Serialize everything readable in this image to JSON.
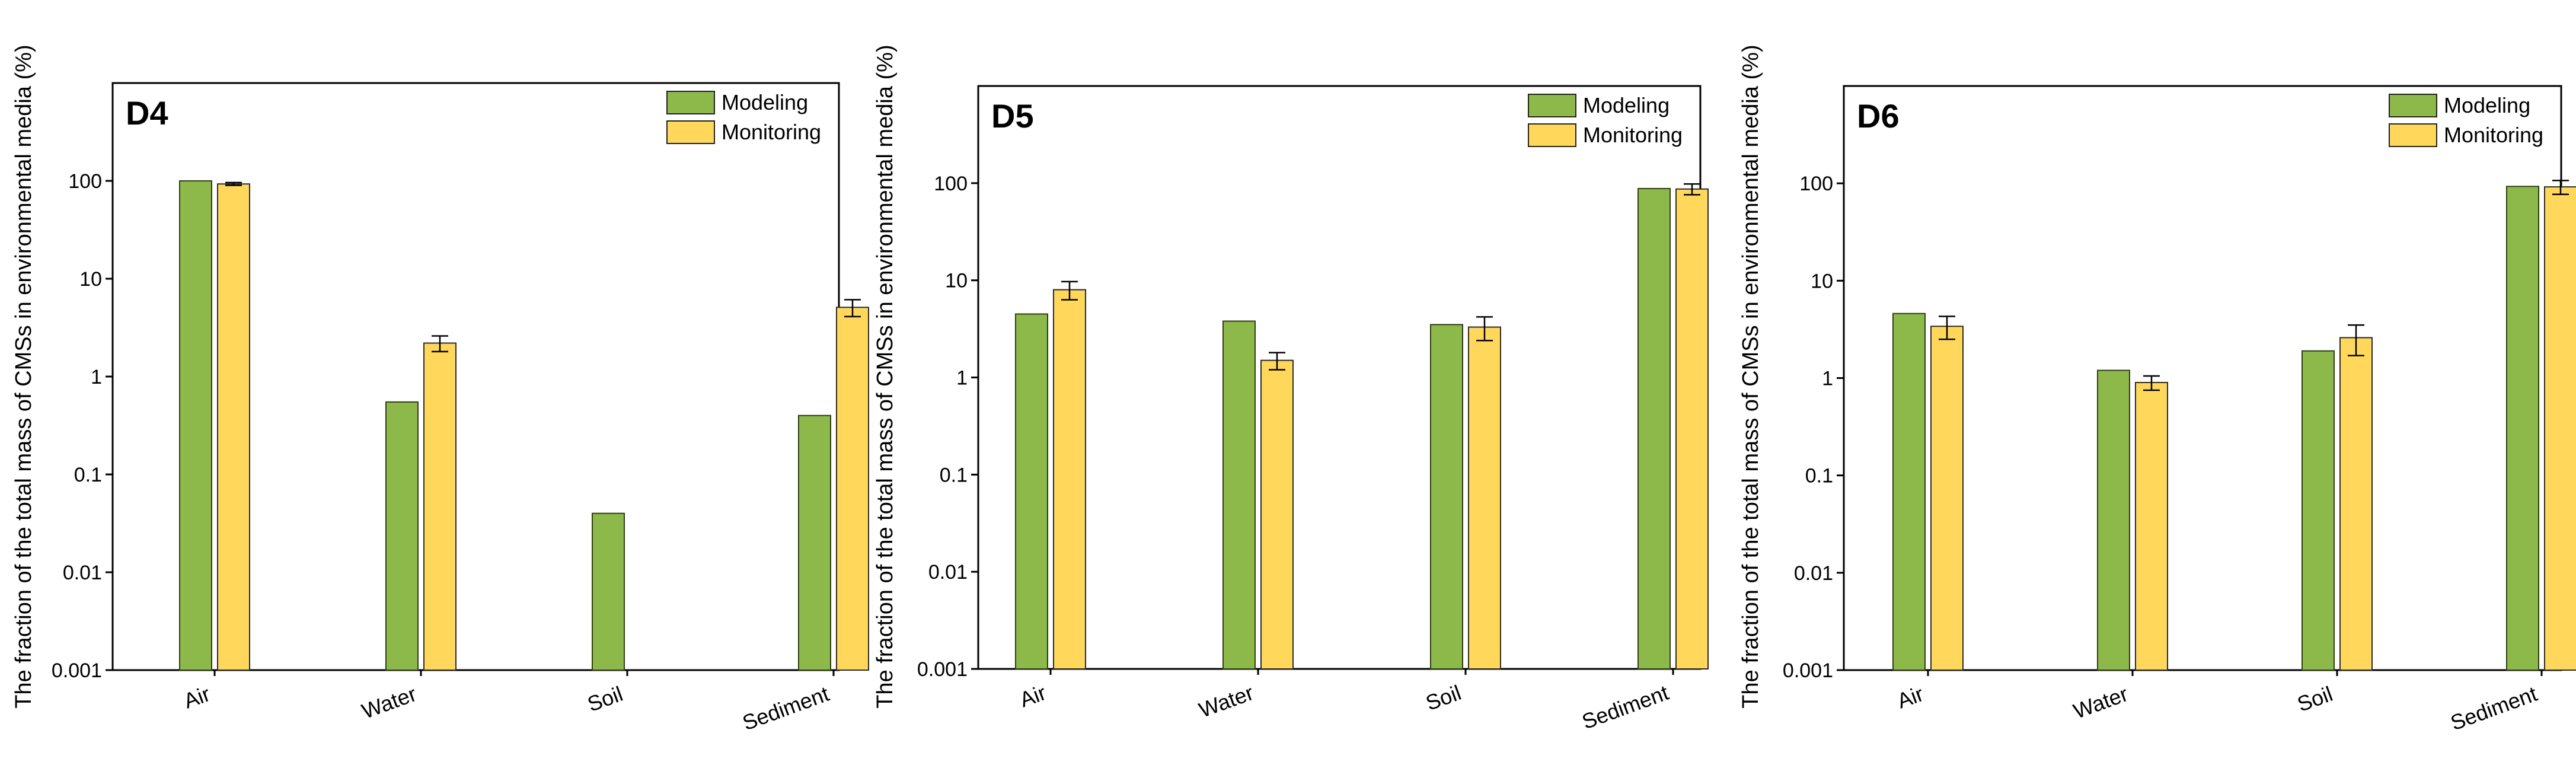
{
  "colors": {
    "modeling": "#8db84a",
    "monitoring": "#ffd75a",
    "axis": "#000000"
  },
  "chart_data": [
    {
      "type": "bar",
      "title": "D4",
      "ylabel": "The fraction of the total mass of CMSs in environmental media (%)",
      "yscale": "log",
      "ylim": [
        0.001,
        1000
      ],
      "yticks": [
        0.001,
        0.01,
        0.1,
        1,
        10,
        100
      ],
      "ytick_labels": [
        "0.001",
        "0.01",
        "0.1",
        "1",
        "10",
        "100"
      ],
      "categories": [
        "Air",
        "Water",
        "Soil",
        "Sediment"
      ],
      "series": [
        {
          "name": "Modeling",
          "values": [
            100,
            0.55,
            0.04,
            0.4
          ],
          "errors": [
            null,
            null,
            null,
            null
          ]
        },
        {
          "name": "Monitoring",
          "values": [
            93,
            2.2,
            null,
            5.1
          ],
          "errors": [
            3,
            0.4,
            null,
            1.0
          ]
        }
      ],
      "legend": [
        "Modeling",
        "Monitoring"
      ],
      "legend_position": "top-right"
    },
    {
      "type": "bar",
      "title": "D5",
      "ylabel": "The fraction of the total mass of CMSs in environmental media (%)",
      "yscale": "log",
      "ylim": [
        0.001,
        1000
      ],
      "yticks": [
        0.001,
        0.01,
        0.1,
        1,
        10,
        100
      ],
      "ytick_labels": [
        "0.001",
        "0.01",
        "0.1",
        "1",
        "10",
        "100"
      ],
      "categories": [
        "Air",
        "Water",
        "Soil",
        "Sediment"
      ],
      "series": [
        {
          "name": "Modeling",
          "values": [
            4.5,
            3.8,
            3.5,
            88
          ],
          "errors": [
            null,
            null,
            null,
            null
          ]
        },
        {
          "name": "Monitoring",
          "values": [
            8.0,
            1.5,
            3.3,
            87
          ],
          "errors": [
            1.7,
            0.3,
            0.9,
            11
          ]
        }
      ],
      "legend": [
        "Modeling",
        "Monitoring"
      ],
      "legend_position": "top-right"
    },
    {
      "type": "bar",
      "title": "D6",
      "ylabel": "The fraction of the total mass of CMSs in environmental media (%)",
      "yscale": "log",
      "ylim": [
        0.001,
        1000
      ],
      "yticks": [
        0.001,
        0.01,
        0.1,
        1,
        10,
        100
      ],
      "ytick_labels": [
        "0.001",
        "0.01",
        "0.1",
        "1",
        "10",
        "100"
      ],
      "categories": [
        "Air",
        "Water",
        "Soil",
        "Sediment"
      ],
      "series": [
        {
          "name": "Modeling",
          "values": [
            4.6,
            1.2,
            1.9,
            93
          ],
          "errors": [
            null,
            null,
            null,
            null
          ]
        },
        {
          "name": "Monitoring",
          "values": [
            3.4,
            0.9,
            2.6,
            92
          ],
          "errors": [
            0.9,
            0.15,
            0.9,
            15
          ]
        }
      ],
      "legend": [
        "Modeling",
        "Monitoring"
      ],
      "legend_position": "top-right"
    }
  ]
}
